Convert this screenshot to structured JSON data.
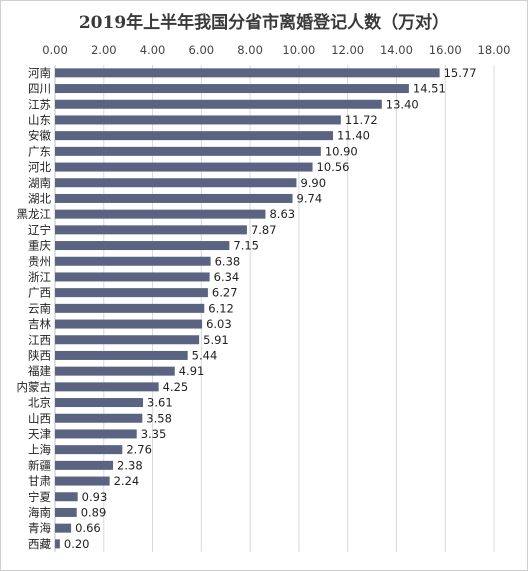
{
  "chart_data": {
    "type": "bar",
    "orientation": "horizontal",
    "title": "2019年上半年我国分省市离婚登记人数（万对）",
    "xlabel": "",
    "ylabel": "",
    "xlim": [
      0,
      18
    ],
    "x_tick_labels": [
      "0.00",
      "2.00",
      "4.00",
      "6.00",
      "8.00",
      "10.00",
      "12.00",
      "14.00",
      "16.00",
      "18.00"
    ],
    "x_axis_position": "top",
    "grid": "vertical",
    "legend": "none",
    "bar_color": "#5b6382",
    "categories": [
      "河南",
      "四川",
      "江苏",
      "山东",
      "安徽",
      "广东",
      "河北",
      "湖南",
      "湖北",
      "黑龙江",
      "辽宁",
      "重庆",
      "贵州",
      "浙江",
      "广西",
      "云南",
      "吉林",
      "江西",
      "陕西",
      "福建",
      "内蒙古",
      "北京",
      "山西",
      "天津",
      "上海",
      "新疆",
      "甘肃",
      "宁夏",
      "海南",
      "青海",
      "西藏"
    ],
    "values": [
      15.77,
      14.51,
      13.4,
      11.72,
      11.4,
      10.9,
      10.56,
      9.9,
      9.74,
      8.63,
      7.87,
      7.15,
      6.38,
      6.34,
      6.27,
      6.12,
      6.03,
      5.91,
      5.44,
      4.91,
      4.25,
      3.61,
      3.58,
      3.35,
      2.76,
      2.38,
      2.24,
      0.93,
      0.89,
      0.66,
      0.2
    ],
    "value_labels": [
      "15.77",
      "14.51",
      "13.40",
      "11.72",
      "11.40",
      "10.90",
      "10.56",
      "9.90",
      "9.74",
      "8.63",
      "7.87",
      "7.15",
      "6.38",
      "6.34",
      "6.27",
      "6.12",
      "6.03",
      "5.91",
      "5.44",
      "4.91",
      "4.25",
      "3.61",
      "3.58",
      "3.35",
      "2.76",
      "2.38",
      "2.24",
      "0.93",
      "0.89",
      "0.66",
      "0.20"
    ]
  }
}
